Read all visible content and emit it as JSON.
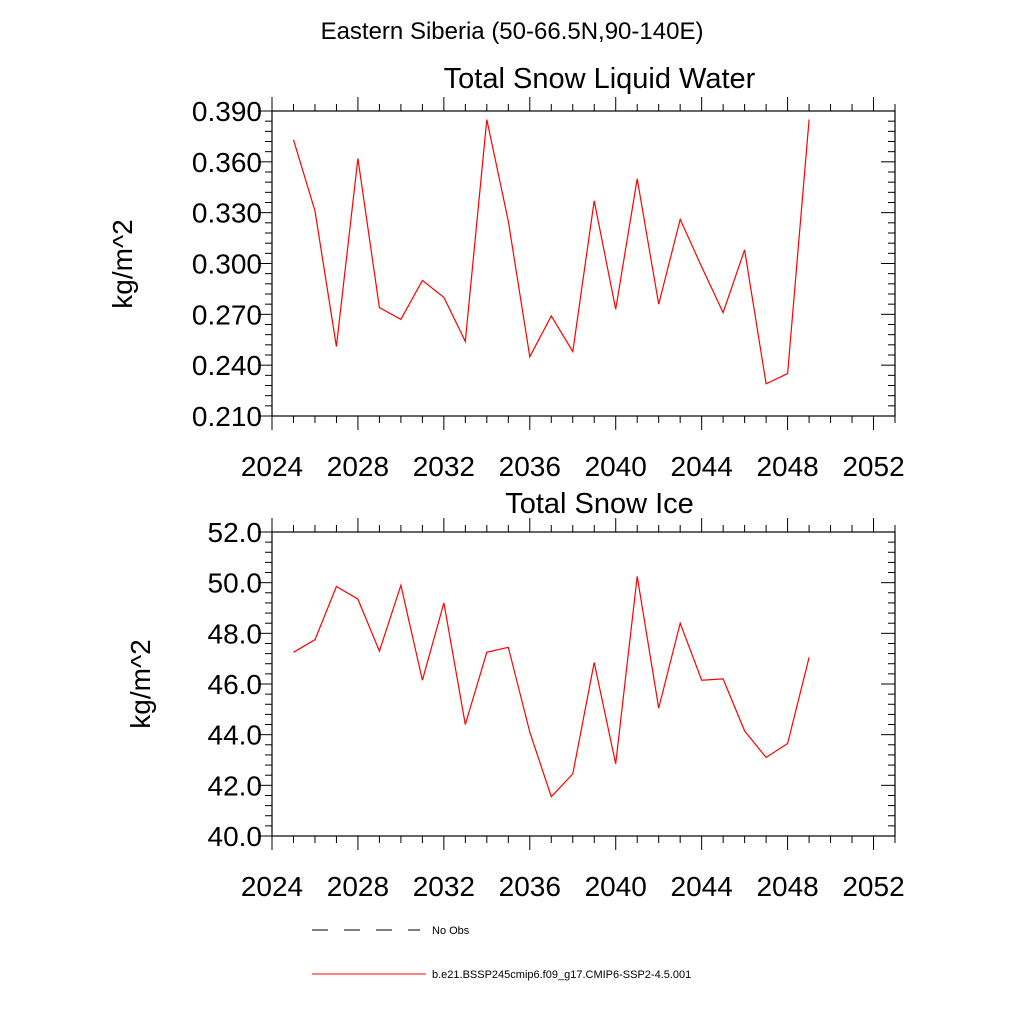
{
  "figure": {
    "title": "Eastern Siberia (50-66.5N,90-140E)"
  },
  "colors": {
    "model": "#ff0000",
    "obs": "#000000",
    "axis": "#000000"
  },
  "chart_data": [
    {
      "type": "line",
      "title": "Total Snow Liquid Water",
      "xlabel": "",
      "ylabel": "kg/m^2",
      "xlim": [
        2024,
        2053
      ],
      "ylim": [
        0.21,
        0.39
      ],
      "xticks": [
        "2024",
        "2028",
        "2032",
        "2036",
        "2040",
        "2044",
        "2048",
        "2052"
      ],
      "yticks": [
        "0.210",
        "0.240",
        "0.270",
        "0.300",
        "0.330",
        "0.360",
        "0.390"
      ],
      "series": [
        {
          "name": "b.e21.BSSP245cmip6.f09_g17.CMIP6-SSP2-4.5.001",
          "x": [
            2025,
            2026,
            2027,
            2028,
            2029,
            2030,
            2031,
            2032,
            2033,
            2034,
            2035,
            2036,
            2037,
            2038,
            2039,
            2040,
            2041,
            2042,
            2043,
            2044,
            2045,
            2046,
            2047,
            2048,
            2049
          ],
          "y": [
            0.373,
            0.331,
            0.251,
            0.362,
            0.274,
            0.267,
            0.29,
            0.28,
            0.254,
            0.385,
            0.325,
            0.245,
            0.269,
            0.248,
            0.337,
            0.273,
            0.35,
            0.276,
            0.326,
            0.298,
            0.271,
            0.308,
            0.229,
            0.235,
            0.385
          ]
        }
      ]
    },
    {
      "type": "line",
      "title": "Total Snow Ice",
      "xlabel": "",
      "ylabel": "kg/m^2",
      "xlim": [
        2024,
        2053
      ],
      "ylim": [
        40.0,
        52.0
      ],
      "xticks": [
        "2024",
        "2028",
        "2032",
        "2036",
        "2040",
        "2044",
        "2048",
        "2052"
      ],
      "yticks": [
        "40.0",
        "42.0",
        "44.0",
        "46.0",
        "48.0",
        "50.0",
        "52.0"
      ],
      "series": [
        {
          "name": "b.e21.BSSP245cmip6.f09_g17.CMIP6-SSP2-4.5.001",
          "x": [
            2025,
            2026,
            2027,
            2028,
            2029,
            2030,
            2031,
            2032,
            2033,
            2034,
            2035,
            2036,
            2037,
            2038,
            2039,
            2040,
            2041,
            2042,
            2043,
            2044,
            2045,
            2046,
            2047,
            2048,
            2049
          ],
          "y": [
            47.25,
            47.75,
            49.85,
            49.35,
            47.3,
            49.9,
            46.15,
            49.2,
            44.4,
            47.25,
            47.45,
            44.1,
            41.55,
            42.45,
            46.85,
            42.85,
            50.25,
            45.05,
            48.4,
            46.15,
            46.2,
            44.15,
            43.1,
            43.65,
            47.05
          ]
        }
      ]
    }
  ],
  "legend": {
    "items": [
      {
        "label": "No Obs",
        "style": "dashed"
      },
      {
        "label": "b.e21.BSSP245cmip6.f09_g17.CMIP6-SSP2-4.5.001",
        "style": "solid"
      }
    ]
  }
}
